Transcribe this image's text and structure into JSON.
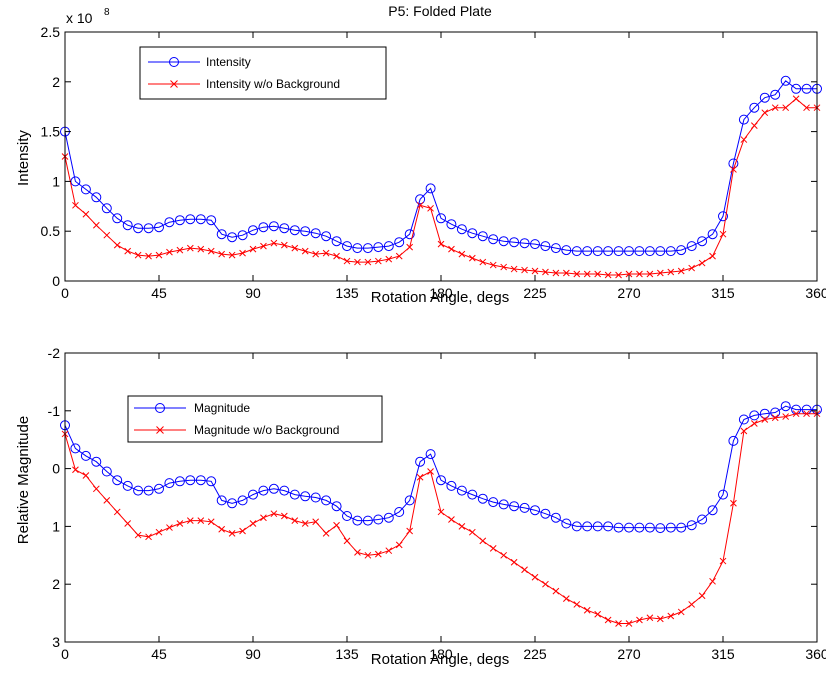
{
  "chart_data": [
    {
      "type": "line",
      "title": "P5: Folded Plate",
      "xlabel": "Rotation Angle, degs",
      "ylabel": "Intensity",
      "y_exponent_label": "x 10",
      "y_exponent_power": "8",
      "xlim": [
        0,
        360
      ],
      "ylim": [
        0,
        2.5
      ],
      "y_reversed": false,
      "grid": false,
      "legend_position": "top-left",
      "x_ticks": [
        "0",
        "45",
        "90",
        "135",
        "180",
        "225",
        "270",
        "315",
        "360"
      ],
      "y_ticks": [
        "0",
        "0.5",
        "1",
        "1.5",
        "2",
        "2.5"
      ],
      "x": [
        0,
        5,
        10,
        15,
        20,
        25,
        30,
        35,
        40,
        45,
        50,
        55,
        60,
        65,
        70,
        75,
        80,
        85,
        90,
        95,
        100,
        105,
        110,
        115,
        120,
        125,
        130,
        135,
        140,
        145,
        150,
        155,
        160,
        165,
        170,
        175,
        180,
        185,
        190,
        195,
        200,
        205,
        210,
        215,
        220,
        225,
        230,
        235,
        240,
        245,
        250,
        255,
        260,
        265,
        270,
        275,
        280,
        285,
        290,
        295,
        300,
        305,
        310,
        315,
        320,
        325,
        330,
        335,
        340,
        345,
        350,
        355,
        360
      ],
      "series": [
        {
          "name": "Intensity",
          "color": "#0000ff",
          "marker": "circle",
          "values": [
            1.5,
            1.0,
            0.92,
            0.84,
            0.73,
            0.63,
            0.56,
            0.53,
            0.53,
            0.54,
            0.59,
            0.61,
            0.62,
            0.62,
            0.61,
            0.47,
            0.44,
            0.46,
            0.51,
            0.54,
            0.55,
            0.53,
            0.51,
            0.5,
            0.48,
            0.45,
            0.4,
            0.35,
            0.33,
            0.33,
            0.34,
            0.35,
            0.39,
            0.47,
            0.82,
            0.93,
            0.63,
            0.57,
            0.52,
            0.48,
            0.45,
            0.42,
            0.4,
            0.39,
            0.38,
            0.37,
            0.35,
            0.33,
            0.31,
            0.3,
            0.3,
            0.3,
            0.3,
            0.3,
            0.3,
            0.3,
            0.3,
            0.3,
            0.3,
            0.31,
            0.35,
            0.4,
            0.47,
            0.65,
            1.18,
            1.62,
            1.74,
            1.84,
            1.87,
            2.01,
            1.93,
            1.93,
            1.93
          ]
        },
        {
          "name": "Intensity w/o Background",
          "color": "#ff0000",
          "marker": "x",
          "values": [
            1.25,
            0.76,
            0.67,
            0.56,
            0.46,
            0.36,
            0.3,
            0.26,
            0.25,
            0.26,
            0.29,
            0.31,
            0.33,
            0.32,
            0.3,
            0.27,
            0.26,
            0.28,
            0.32,
            0.35,
            0.38,
            0.36,
            0.33,
            0.3,
            0.27,
            0.28,
            0.25,
            0.2,
            0.19,
            0.19,
            0.2,
            0.22,
            0.25,
            0.34,
            0.76,
            0.73,
            0.37,
            0.32,
            0.27,
            0.23,
            0.19,
            0.16,
            0.14,
            0.12,
            0.11,
            0.1,
            0.09,
            0.08,
            0.08,
            0.07,
            0.07,
            0.07,
            0.06,
            0.06,
            0.07,
            0.07,
            0.07,
            0.08,
            0.09,
            0.1,
            0.13,
            0.18,
            0.25,
            0.47,
            1.12,
            1.42,
            1.56,
            1.69,
            1.74,
            1.74,
            1.83,
            1.74,
            1.74
          ]
        }
      ]
    },
    {
      "type": "line",
      "title": "",
      "xlabel": "Rotation Angle, degs",
      "ylabel": "Relative Magnitude",
      "xlim": [
        0,
        360
      ],
      "ylim": [
        -2,
        3
      ],
      "y_reversed": true,
      "grid": false,
      "legend_position": "top-left",
      "x_ticks": [
        "0",
        "45",
        "90",
        "135",
        "180",
        "225",
        "270",
        "315",
        "360"
      ],
      "y_ticks": [
        "-2",
        "-1",
        "0",
        "1",
        "2",
        "3"
      ],
      "x": [
        0,
        5,
        10,
        15,
        20,
        25,
        30,
        35,
        40,
        45,
        50,
        55,
        60,
        65,
        70,
        75,
        80,
        85,
        90,
        95,
        100,
        105,
        110,
        115,
        120,
        125,
        130,
        135,
        140,
        145,
        150,
        155,
        160,
        165,
        170,
        175,
        180,
        185,
        190,
        195,
        200,
        205,
        210,
        215,
        220,
        225,
        230,
        235,
        240,
        245,
        250,
        255,
        260,
        265,
        270,
        275,
        280,
        285,
        290,
        295,
        300,
        305,
        310,
        315,
        320,
        325,
        330,
        335,
        340,
        345,
        350,
        355,
        360
      ],
      "series": [
        {
          "name": "Magnitude",
          "color": "#0000ff",
          "marker": "circle",
          "values": [
            -0.75,
            -0.35,
            -0.22,
            -0.12,
            0.05,
            0.2,
            0.3,
            0.38,
            0.38,
            0.35,
            0.25,
            0.22,
            0.2,
            0.2,
            0.22,
            0.55,
            0.6,
            0.55,
            0.45,
            0.38,
            0.35,
            0.38,
            0.45,
            0.48,
            0.5,
            0.55,
            0.65,
            0.82,
            0.9,
            0.9,
            0.88,
            0.85,
            0.75,
            0.55,
            -0.12,
            -0.25,
            0.2,
            0.3,
            0.38,
            0.45,
            0.52,
            0.58,
            0.62,
            0.65,
            0.68,
            0.72,
            0.78,
            0.85,
            0.95,
            1.0,
            1.0,
            1.0,
            1.0,
            1.02,
            1.02,
            1.02,
            1.02,
            1.03,
            1.02,
            1.02,
            0.98,
            0.88,
            0.72,
            0.45,
            -0.48,
            -0.85,
            -0.92,
            -0.95,
            -0.97,
            -1.08,
            -1.02,
            -1.02,
            -1.02
          ]
        },
        {
          "name": "Magnitude w/o Background",
          "color": "#ff0000",
          "marker": "x",
          "values": [
            -0.6,
            0.02,
            0.12,
            0.35,
            0.55,
            0.75,
            0.95,
            1.15,
            1.18,
            1.1,
            1.02,
            0.95,
            0.9,
            0.9,
            0.92,
            1.05,
            1.12,
            1.08,
            0.95,
            0.85,
            0.78,
            0.82,
            0.9,
            0.95,
            0.92,
            1.12,
            0.98,
            1.25,
            1.45,
            1.5,
            1.48,
            1.42,
            1.32,
            1.08,
            0.15,
            0.05,
            0.75,
            0.88,
            1.0,
            1.1,
            1.25,
            1.38,
            1.5,
            1.62,
            1.75,
            1.88,
            2.0,
            2.12,
            2.25,
            2.35,
            2.45,
            2.52,
            2.62,
            2.68,
            2.68,
            2.62,
            2.58,
            2.6,
            2.55,
            2.48,
            2.35,
            2.2,
            1.95,
            1.6,
            0.6,
            -0.65,
            -0.78,
            -0.85,
            -0.88,
            -0.9,
            -0.95,
            -0.95,
            -0.95
          ]
        }
      ]
    }
  ]
}
